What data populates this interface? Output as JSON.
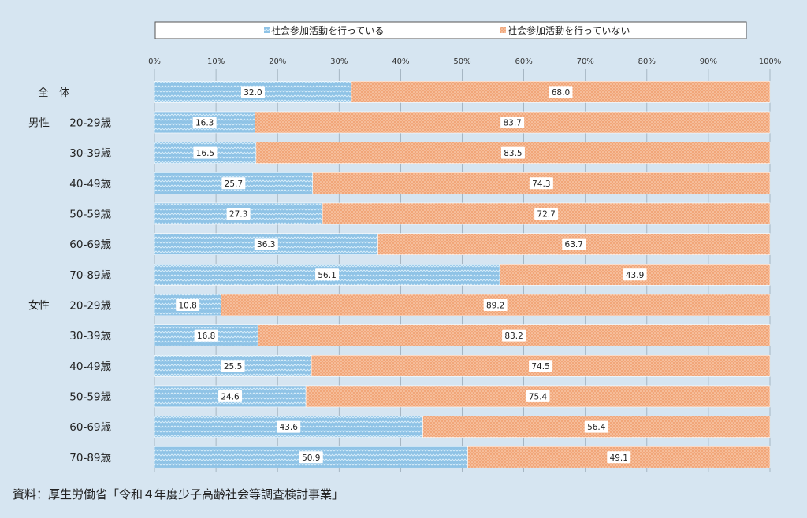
{
  "source_note": "資料：厚生労働省「令和４年度少子高齢社会等調査検討事業」",
  "colors": {
    "background": "#d6e5f1",
    "series_active": "#8fc3e6",
    "series_active_line": "#d9eefa",
    "series_inactive": "#f1a679",
    "series_inactive_dot": "#fbd9c2",
    "grid": "#9aaab8",
    "label_box": "#ffffff"
  },
  "chart_data": {
    "type": "bar",
    "orientation": "horizontal",
    "stacked": true,
    "title": "",
    "xlabel": "",
    "ylabel": "",
    "xlim": [
      0,
      100
    ],
    "x_ticks": [
      "0%",
      "10%",
      "20%",
      "30%",
      "40%",
      "50%",
      "60%",
      "70%",
      "80%",
      "90%",
      "100%"
    ],
    "legend_position": "top",
    "grid": true,
    "groups": [
      {
        "name": "全　体",
        "rows": [
          0
        ]
      },
      {
        "name": "男性",
        "rows": [
          1,
          2,
          3,
          4,
          5,
          6
        ]
      },
      {
        "name": "女性",
        "rows": [
          7,
          8,
          9,
          10,
          11,
          12
        ]
      }
    ],
    "categories": [
      "",
      "20-29歳",
      "30-39歳",
      "40-49歳",
      "50-59歳",
      "60-69歳",
      "70-89歳",
      "20-29歳",
      "30-39歳",
      "40-49歳",
      "50-59歳",
      "60-69歳",
      "70-89歳"
    ],
    "series": [
      {
        "name": "社会参加活動を行っている",
        "values": [
          32.0,
          16.3,
          16.5,
          25.7,
          27.3,
          36.3,
          56.1,
          10.8,
          16.8,
          25.5,
          24.6,
          43.6,
          50.9
        ]
      },
      {
        "name": "社会参加活動を行っていない",
        "values": [
          68.0,
          83.7,
          83.5,
          74.3,
          72.7,
          63.7,
          43.9,
          89.2,
          83.2,
          74.5,
          75.4,
          56.4,
          49.1
        ]
      }
    ]
  }
}
